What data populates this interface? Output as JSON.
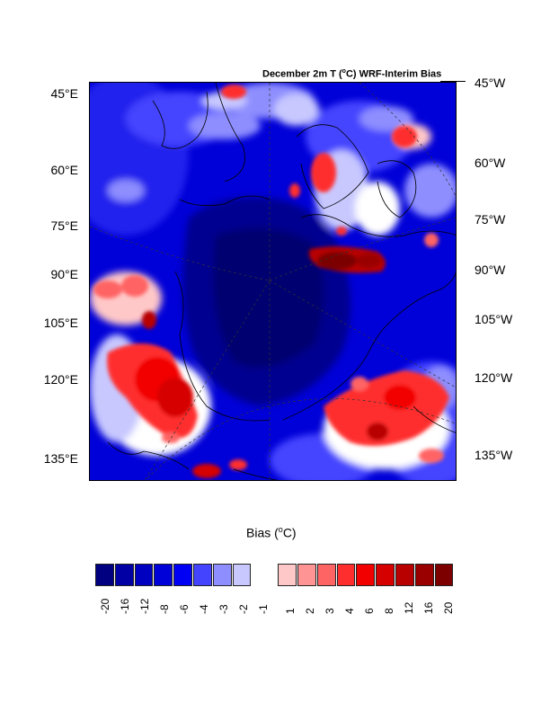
{
  "title_prefix": "December 2m T (",
  "title_unit_sup": "o",
  "title_suffix": "C) WRF-Interim Bias",
  "legend": {
    "title_prefix": "Bias (",
    "title_sup": "o",
    "title_suffix": "C)",
    "colors": [
      "#000080",
      "#0000a4",
      "#0000c0",
      "#0000d8",
      "#0000f5",
      "#4444ff",
      "#8e8eff",
      "#c8c8ff",
      "#ffffff",
      "#ffc8c8",
      "#ff9494",
      "#ff6464",
      "#ff2e2e",
      "#f20000",
      "#d60000",
      "#b80000",
      "#9a0000",
      "#7c0000"
    ],
    "ticks": [
      "-20",
      "-16",
      "-12",
      "-8",
      "-6",
      "-4",
      "-3",
      "-2",
      "-1",
      "1",
      "2",
      "3",
      "4",
      "6",
      "8",
      "12",
      "16",
      "20"
    ]
  },
  "lat_labels_left": [
    "45°E",
    "60°E",
    "75°E",
    "90°E",
    "105°E",
    "120°E",
    "135°E"
  ],
  "lat_labels_right": [
    "45°W",
    "60°W",
    "75°W",
    "90°W",
    "105°W",
    "120°W",
    "135°W"
  ]
}
